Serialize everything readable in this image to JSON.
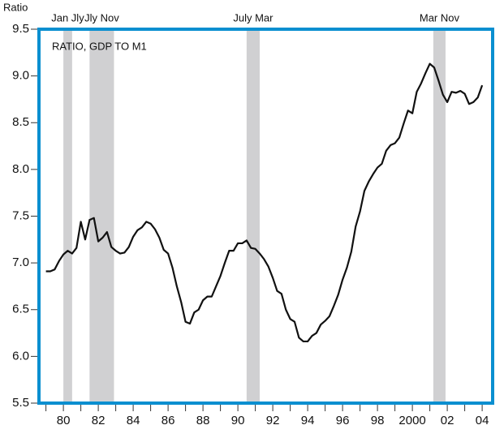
{
  "chart_data": {
    "type": "line",
    "y_axis_label": "Ratio",
    "annotation": "RATIO, GDP TO M1",
    "x": [
      1979,
      1979.25,
      1979.5,
      1979.75,
      1980,
      1980.25,
      1980.5,
      1980.75,
      1981,
      1981.25,
      1981.5,
      1981.75,
      1982,
      1982.25,
      1982.5,
      1982.75,
      1983,
      1983.25,
      1983.5,
      1983.75,
      1984,
      1984.25,
      1984.5,
      1984.75,
      1985,
      1985.25,
      1985.5,
      1985.75,
      1986,
      1986.25,
      1986.5,
      1986.75,
      1987,
      1987.25,
      1987.5,
      1987.75,
      1988,
      1988.25,
      1988.5,
      1988.75,
      1989,
      1989.25,
      1989.5,
      1989.75,
      1990,
      1990.25,
      1990.5,
      1990.75,
      1991,
      1991.25,
      1991.5,
      1991.75,
      1992,
      1992.25,
      1992.5,
      1992.75,
      1993,
      1993.25,
      1993.5,
      1993.75,
      1994,
      1994.25,
      1994.5,
      1994.75,
      1995,
      1995.25,
      1995.5,
      1995.75,
      1996,
      1996.25,
      1996.5,
      1996.75,
      1997,
      1997.25,
      1997.5,
      1997.75,
      1998,
      1998.25,
      1998.5,
      1998.75,
      1999,
      1999.25,
      1999.5,
      1999.75,
      2000,
      2000.25,
      2000.5,
      2000.75,
      2001,
      2001.25,
      2001.5,
      2001.75,
      2002,
      2002.25,
      2002.5,
      2002.75,
      2003,
      2003.25,
      2003.5,
      2003.75,
      2004
    ],
    "series": [
      {
        "name": "Ratio, GDP to M1",
        "color": "#111111",
        "values": [
          6.91,
          6.91,
          6.93,
          7.02,
          7.09,
          7.13,
          7.1,
          7.16,
          7.44,
          7.25,
          7.46,
          7.48,
          7.23,
          7.27,
          7.33,
          7.17,
          7.13,
          7.1,
          7.11,
          7.17,
          7.28,
          7.35,
          7.38,
          7.44,
          7.42,
          7.36,
          7.27,
          7.14,
          7.1,
          6.95,
          6.75,
          6.58,
          6.37,
          6.35,
          6.47,
          6.5,
          6.6,
          6.64,
          6.64,
          6.75,
          6.86,
          7.0,
          7.13,
          7.13,
          7.21,
          7.21,
          7.24,
          7.16,
          7.15,
          7.1,
          7.04,
          6.96,
          6.84,
          6.7,
          6.67,
          6.5,
          6.4,
          6.37,
          6.2,
          6.16,
          6.16,
          6.22,
          6.25,
          6.34,
          6.38,
          6.43,
          6.54,
          6.66,
          6.82,
          6.95,
          7.12,
          7.39,
          7.55,
          7.77,
          7.87,
          7.95,
          8.02,
          8.06,
          8.2,
          8.26,
          8.28,
          8.34,
          8.49,
          8.63,
          8.6,
          8.83,
          8.92,
          9.03,
          9.13,
          9.09,
          8.95,
          8.8,
          8.72,
          8.83,
          8.82,
          8.84,
          8.81,
          8.7,
          8.72,
          8.77,
          8.9
        ]
      }
    ],
    "recessions": [
      {
        "start": 1980.0,
        "end": 1980.5,
        "label": "Jan Jly"
      },
      {
        "start": 1981.5,
        "end": 1982.9,
        "label": "Jly Nov"
      },
      {
        "start": 1990.5,
        "end": 1991.25,
        "label": "July Mar"
      },
      {
        "start": 2001.2,
        "end": 2001.9,
        "label": "Mar Nov"
      }
    ],
    "recession_color": "#d0d0d2",
    "frame_color": "#0a8fd0",
    "xlim": [
      1978.6,
      2004.6
    ],
    "xticks": [
      {
        "value": 1980,
        "label": "80"
      },
      {
        "value": 1982,
        "label": "82"
      },
      {
        "value": 1984,
        "label": "84"
      },
      {
        "value": 1986,
        "label": "86"
      },
      {
        "value": 1988,
        "label": "88"
      },
      {
        "value": 1990,
        "label": "90"
      },
      {
        "value": 1992,
        "label": "92"
      },
      {
        "value": 1994,
        "label": "94"
      },
      {
        "value": 1996,
        "label": "96"
      },
      {
        "value": 1998,
        "label": "98"
      },
      2000,
      {
        "value": 2002,
        "label": "02"
      },
      {
        "value": 2004,
        "label": "04"
      }
    ],
    "xminor_ticks": [
      1979,
      1981,
      1983,
      1985,
      1987,
      1989,
      1991,
      1993,
      1995,
      1997,
      1999,
      2001,
      2003
    ],
    "ylim": [
      5.5,
      9.5
    ],
    "yticks": [
      5.5,
      {
        "value": 6,
        "label": "6.0"
      },
      6.5,
      {
        "value": 7,
        "label": "7.0"
      },
      7.5,
      {
        "value": 8,
        "label": "8.0"
      },
      8.5,
      {
        "value": 9,
        "label": "9.0"
      },
      9.5
    ]
  }
}
